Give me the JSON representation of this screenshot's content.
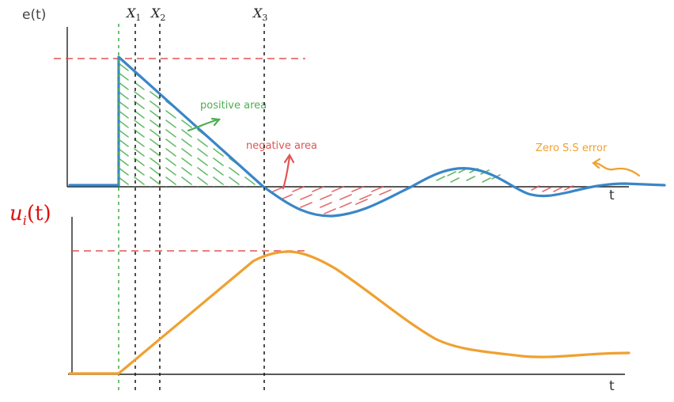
{
  "chart_data": [
    {
      "type": "line",
      "title": "",
      "ylabel": "e(t)",
      "xlabel": "t",
      "x_markers": [
        "X",
        "X",
        "X"
      ],
      "x_marker_subscripts": [
        "1",
        "2",
        "3"
      ],
      "annotations": {
        "positive": "positive area",
        "negative": "negative area",
        "steady": "Zero S.S error"
      },
      "series": [
        {
          "color": "#3a86c8"
        }
      ],
      "colors": {
        "positive_hatch": "#4caf50",
        "negative_hatch": "#e05555",
        "reference_dashed": "#e05555",
        "start_marker": "#4caf50",
        "annotation_steady": "#f0a030"
      }
    },
    {
      "type": "line",
      "title": "",
      "ylabel_base": "u",
      "ylabel_sub": "i",
      "ylabel_rest": "(t)",
      "xlabel": "t",
      "series": [
        {
          "color": "#f0a030"
        }
      ],
      "colors": {
        "ylabel": "#dd1111",
        "reference_dashed": "#e05555"
      }
    }
  ]
}
